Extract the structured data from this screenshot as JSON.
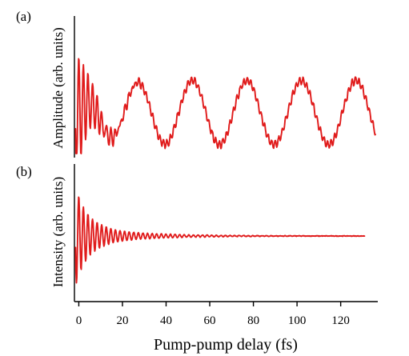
{
  "chart_data": [
    {
      "panel": "(a)",
      "type": "line",
      "ylabel": "Amplitude (arb. units)",
      "xlim": [
        -2,
        137
      ],
      "ylim": [
        0,
        1
      ],
      "series": [
        {
          "color": "#e01b1b",
          "description_points": [
            [
              -1.5,
              0.62
            ],
            [
              0.5,
              0.85
            ],
            [
              2.5,
              0.15
            ],
            [
              4.5,
              0.8
            ],
            [
              6.5,
              0.2
            ],
            [
              8.5,
              0.55
            ],
            [
              10.5,
              0.35
            ],
            [
              14,
              0.3
            ],
            [
              18,
              0.45
            ],
            [
              22,
              0.48
            ],
            [
              26,
              0.55
            ],
            [
              30,
              0.5
            ],
            [
              34,
              0.25
            ],
            [
              37,
              0.08
            ],
            [
              41,
              0.12
            ],
            [
              45,
              0.4
            ],
            [
              49,
              0.52
            ],
            [
              53,
              0.55
            ],
            [
              57,
              0.4
            ],
            [
              61,
              0.1
            ],
            [
              64,
              0.05
            ],
            [
              67,
              0.2
            ],
            [
              71,
              0.4
            ],
            [
              75,
              0.52
            ],
            [
              79,
              0.55
            ],
            [
              83,
              0.45
            ],
            [
              87,
              0.2
            ],
            [
              90,
              0.05
            ],
            [
              93,
              0.1
            ],
            [
              97,
              0.35
            ],
            [
              101,
              0.5
            ],
            [
              105,
              0.55
            ],
            [
              109,
              0.4
            ],
            [
              113,
              0.05
            ],
            [
              116,
              0.1
            ],
            [
              120,
              0.35
            ],
            [
              124,
              0.5
            ],
            [
              128,
              0.55
            ],
            [
              132,
              0.45
            ],
            [
              136,
              0.08
            ]
          ]
        }
      ]
    },
    {
      "panel": "(b)",
      "type": "line",
      "ylabel": "Intensity (arb. units)",
      "xlabel": "Pump-pump delay (fs)",
      "xlim": [
        -2,
        137
      ],
      "x_ticks": [
        "0",
        "20",
        "40",
        "60",
        "80",
        "100",
        "120"
      ],
      "x_tick_values": [
        0,
        20,
        40,
        60,
        80,
        100,
        120
      ],
      "ylim": [
        -1,
        1
      ],
      "series": [
        {
          "color": "#e01b1b",
          "description_points": [
            [
              -1.5,
              0.0
            ],
            [
              0.5,
              0.85
            ],
            [
              2.5,
              -0.8
            ],
            [
              4.5,
              0.7
            ],
            [
              6.5,
              -0.55
            ],
            [
              8.5,
              0.45
            ],
            [
              10.5,
              -0.3
            ],
            [
              12.5,
              0.2
            ],
            [
              15,
              0.05
            ],
            [
              20,
              0.03
            ],
            [
              25,
              0.06
            ],
            [
              30,
              0.08
            ],
            [
              35,
              0.05
            ],
            [
              40,
              0.03
            ],
            [
              50,
              0.02
            ],
            [
              60,
              0.01
            ],
            [
              70,
              0.02
            ],
            [
              80,
              0.01
            ],
            [
              90,
              0.0
            ],
            [
              100,
              0.0
            ],
            [
              110,
              0.0
            ],
            [
              120,
              0.0
            ],
            [
              130,
              0.0
            ]
          ]
        }
      ]
    }
  ]
}
